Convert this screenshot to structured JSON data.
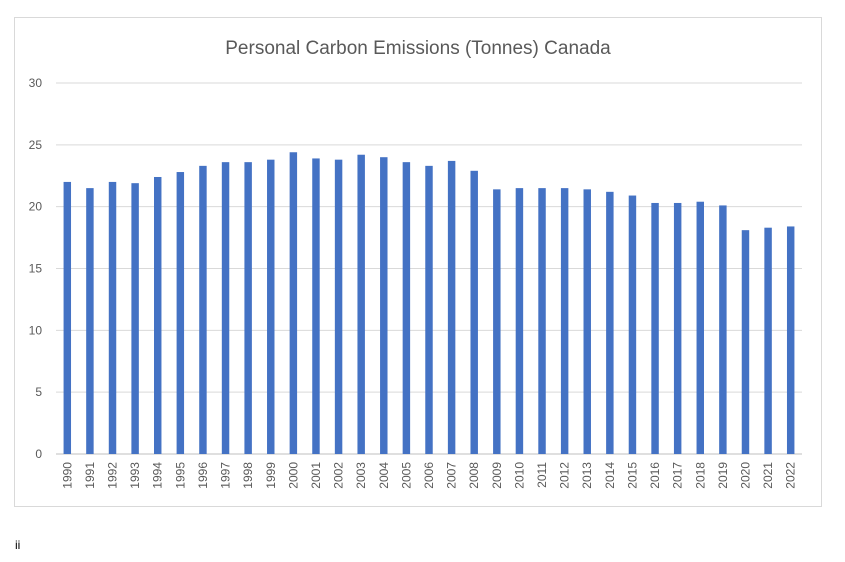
{
  "footnote": "ii",
  "colors": {
    "bar": "#4472c4",
    "grid": "#d9d9d9",
    "text": "#595959"
  },
  "chart_data": {
    "type": "bar",
    "title": "Personal Carbon Emissions (Tonnes) Canada",
    "xlabel": "",
    "ylabel": "",
    "ylim": [
      0,
      30
    ],
    "yticks": [
      0,
      5,
      10,
      15,
      20,
      25,
      30
    ],
    "grid": true,
    "legend": "none",
    "categories": [
      "1990",
      "1991",
      "1992",
      "1993",
      "1994",
      "1995",
      "1996",
      "1997",
      "1998",
      "1999",
      "2000",
      "2001",
      "2002",
      "2003",
      "2004",
      "2005",
      "2006",
      "2007",
      "2008",
      "2009",
      "2010",
      "2011",
      "2012",
      "2013",
      "2014",
      "2015",
      "2016",
      "2017",
      "2018",
      "2019",
      "2020",
      "2021",
      "2022"
    ],
    "values": [
      22.0,
      21.5,
      22.0,
      21.9,
      22.4,
      22.8,
      23.3,
      23.6,
      23.6,
      23.8,
      24.4,
      23.9,
      23.8,
      24.2,
      24.0,
      23.6,
      23.3,
      23.7,
      22.9,
      21.4,
      21.5,
      21.5,
      21.5,
      21.4,
      21.2,
      20.9,
      20.3,
      20.3,
      20.4,
      20.1,
      18.1,
      18.3,
      18.4
    ]
  }
}
